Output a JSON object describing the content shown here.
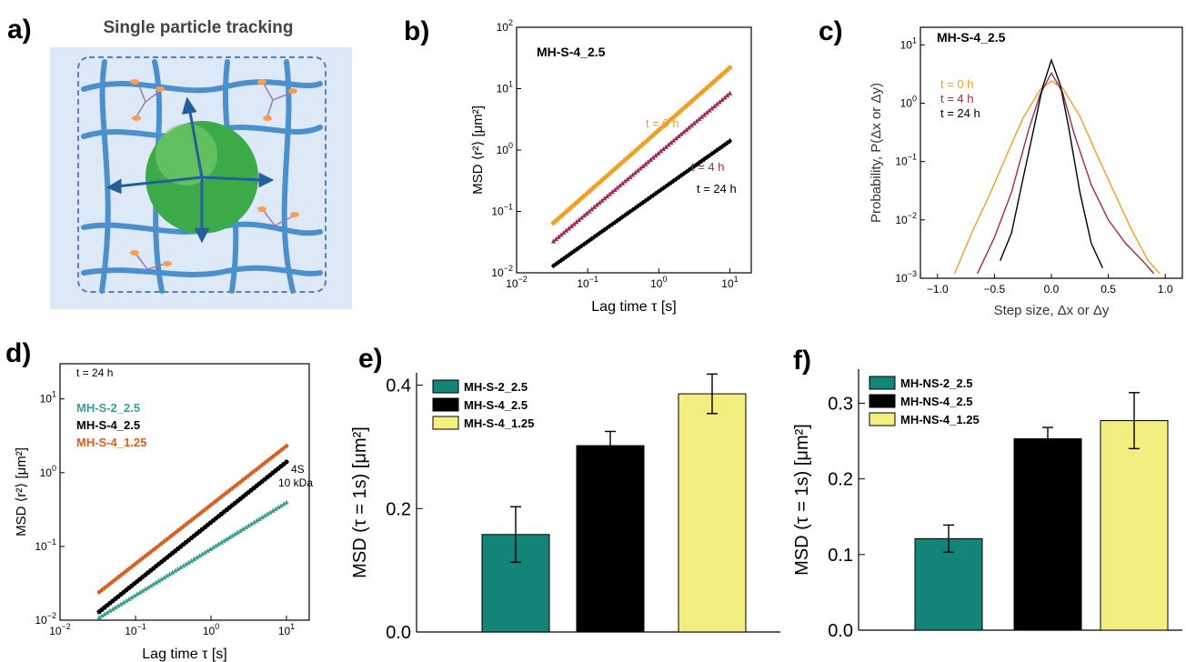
{
  "colors": {
    "orange": "#f0a020",
    "magenta": "#a02858",
    "black": "#000000",
    "teal": "#3a9e90",
    "orange_d": "#d86020",
    "bar_teal": "#148479",
    "bar_yellow": "#f2ee80",
    "node_blue": "#4b8fcc"
  },
  "panels": {
    "a": {
      "label": "a)",
      "title": "Single particle tracking",
      "icon": "hydrogel-network-with-particle-illustration"
    }
  },
  "chart_data": [
    {
      "panel": "b",
      "panel_label": "b)",
      "type": "scatter",
      "log_x": true,
      "log_y": true,
      "xlim": [
        0.01,
        20
      ],
      "ylim": [
        0.01,
        100
      ],
      "xlabel": "Lag time τ [s]",
      "ylabel": "MSD ⟨r²⟩ [μm²]",
      "x_ticks": [
        {
          "v": 0.01,
          "b": "10",
          "e": "−2"
        },
        {
          "v": 0.1,
          "b": "10",
          "e": "−1"
        },
        {
          "v": 1,
          "b": "10",
          "e": "0"
        },
        {
          "v": 10,
          "b": "10",
          "e": "1"
        }
      ],
      "y_ticks": [
        {
          "v": 0.01,
          "b": "10",
          "e": "−2"
        },
        {
          "v": 0.1,
          "b": "10",
          "e": "−1"
        },
        {
          "v": 1,
          "b": "10",
          "e": "0"
        },
        {
          "v": 10,
          "b": "10",
          "e": "1"
        },
        {
          "v": 100,
          "b": "10",
          "e": "2"
        }
      ],
      "annotation": "MH-S-4_2.5",
      "series": [
        {
          "name": "t = 0 h",
          "color_key": "orange",
          "marker": "circle",
          "x0": 0.033,
          "y0": 0.065,
          "x1": 10,
          "y1": 22
        },
        {
          "name": "t = 4 h",
          "color_key": "magenta",
          "marker": "triangle",
          "x0": 0.033,
          "y0": 0.033,
          "x1": 10,
          "y1": 8.5
        },
        {
          "name": "t = 24 h",
          "color_key": "black",
          "marker": "diamond",
          "x0": 0.033,
          "y0": 0.013,
          "x1": 10,
          "y1": 1.4
        }
      ]
    },
    {
      "panel": "c",
      "panel_label": "c)",
      "type": "line",
      "log_y": true,
      "xlim": [
        -1.15,
        1.15
      ],
      "ylim": [
        0.001,
        20
      ],
      "xlabel": "Step size, Δx or Δy",
      "ylabel": "Probability, P(Δx or Δy)",
      "x_ticks": [
        {
          "v": -1,
          "t": "−1.0"
        },
        {
          "v": -0.5,
          "t": "−0.5"
        },
        {
          "v": 0,
          "t": "0.0"
        },
        {
          "v": 0.5,
          "t": "0.5"
        },
        {
          "v": 1,
          "t": "1.0"
        }
      ],
      "y_ticks": [
        {
          "v": 0.001,
          "b": "10",
          "e": "−3"
        },
        {
          "v": 0.01,
          "b": "10",
          "e": "−2"
        },
        {
          "v": 0.1,
          "b": "10",
          "e": "−1"
        },
        {
          "v": 1,
          "b": "10",
          "e": "0"
        },
        {
          "v": 10,
          "b": "10",
          "e": "1"
        }
      ],
      "annotation": "MH-S-4_2.5",
      "series": [
        {
          "name": "t = 0 h",
          "color_key": "orange",
          "x": [
            -0.85,
            -0.7,
            -0.55,
            -0.4,
            -0.25,
            -0.1,
            0,
            0.1,
            0.25,
            0.4,
            0.55,
            0.7,
            0.85,
            0.95
          ],
          "y": [
            0.0012,
            0.006,
            0.025,
            0.12,
            0.55,
            1.7,
            2.4,
            1.8,
            0.6,
            0.13,
            0.03,
            0.007,
            0.002,
            0.0012
          ]
        },
        {
          "name": "t = 4 h",
          "color_key": "magenta",
          "x": [
            -0.65,
            -0.5,
            -0.35,
            -0.2,
            -0.1,
            0,
            0.1,
            0.2,
            0.35,
            0.5,
            0.65,
            0.8,
            0.9
          ],
          "y": [
            0.0012,
            0.005,
            0.03,
            0.35,
            1.4,
            3.3,
            1.5,
            0.3,
            0.04,
            0.01,
            0.004,
            0.002,
            0.0012
          ]
        },
        {
          "name": "t = 24 h",
          "color_key": "black",
          "x": [
            -0.45,
            -0.35,
            -0.25,
            -0.15,
            -0.08,
            0,
            0.08,
            0.15,
            0.25,
            0.35,
            0.45
          ],
          "y": [
            0.002,
            0.006,
            0.05,
            0.4,
            1.8,
            5.5,
            2.0,
            0.4,
            0.03,
            0.004,
            0.0015
          ]
        }
      ]
    },
    {
      "panel": "d",
      "panel_label": "d)",
      "type": "scatter",
      "log_x": true,
      "log_y": true,
      "xlim": [
        0.01,
        20
      ],
      "ylim": [
        0.01,
        30
      ],
      "xlabel": "Lag time τ [s]",
      "ylabel": "MSD ⟨r²⟩ [μm²]",
      "x_ticks": [
        {
          "v": 0.01,
          "b": "10",
          "e": "−2"
        },
        {
          "v": 0.1,
          "b": "10",
          "e": "−1"
        },
        {
          "v": 1,
          "b": "10",
          "e": "0"
        },
        {
          "v": 10,
          "b": "10",
          "e": "1"
        }
      ],
      "y_ticks": [
        {
          "v": 0.01,
          "b": "10",
          "e": "−2"
        },
        {
          "v": 0.1,
          "b": "10",
          "e": "−1"
        },
        {
          "v": 1,
          "b": "10",
          "e": "0"
        },
        {
          "v": 10,
          "b": "10",
          "e": "1"
        }
      ],
      "annotation": "t = 24 h",
      "extra_text": [
        "4S",
        "10 kDa"
      ],
      "series": [
        {
          "name": "MH-S-2_2.5",
          "color_key": "teal",
          "marker": "triangle",
          "x0": 0.033,
          "y0": 0.011,
          "x1": 10,
          "y1": 0.4
        },
        {
          "name": "MH-S-4_2.5",
          "color_key": "black",
          "marker": "circle",
          "x0": 0.033,
          "y0": 0.013,
          "x1": 10,
          "y1": 1.4
        },
        {
          "name": "MH-S-4_1.25",
          "color_key": "orange_d",
          "marker": "diamond",
          "x0": 0.033,
          "y0": 0.024,
          "x1": 10,
          "y1": 2.3
        }
      ]
    },
    {
      "panel": "e",
      "panel_label": "e)",
      "type": "bar",
      "ylim": [
        0,
        0.42
      ],
      "ylabel": "MSD (τ = 1s) [μm²]",
      "y_ticks": [
        {
          "v": 0,
          "t": "0.0"
        },
        {
          "v": 0.2,
          "t": "0.2"
        },
        {
          "v": 0.4,
          "t": "0.4"
        }
      ],
      "series": [
        {
          "name": "MH-S-2_2.5",
          "value": 0.158,
          "err": 0.045,
          "color_key": "bar_teal"
        },
        {
          "name": "MH-S-4_2.5",
          "value": 0.302,
          "err": 0.023,
          "color_key": "black"
        },
        {
          "name": "MH-S-4_1.25",
          "value": 0.386,
          "err": 0.032,
          "color_key": "bar_yellow"
        }
      ]
    },
    {
      "panel": "f",
      "panel_label": "f)",
      "type": "bar",
      "ylim": [
        0,
        0.345
      ],
      "ylabel": "MSD (τ = 1s) [μm²]",
      "y_ticks": [
        {
          "v": 0,
          "t": "0.0"
        },
        {
          "v": 0.1,
          "t": "0.1"
        },
        {
          "v": 0.2,
          "t": "0.2"
        },
        {
          "v": 0.3,
          "t": "0.3"
        }
      ],
      "series": [
        {
          "name": "MH-NS-2_2.5",
          "value": 0.121,
          "err": 0.018,
          "color_key": "bar_teal"
        },
        {
          "name": "MH-NS-4_2.5",
          "value": 0.253,
          "err": 0.015,
          "color_key": "black"
        },
        {
          "name": "MH-NS-4_1.25",
          "value": 0.277,
          "err": 0.037,
          "color_key": "bar_yellow"
        }
      ]
    }
  ]
}
